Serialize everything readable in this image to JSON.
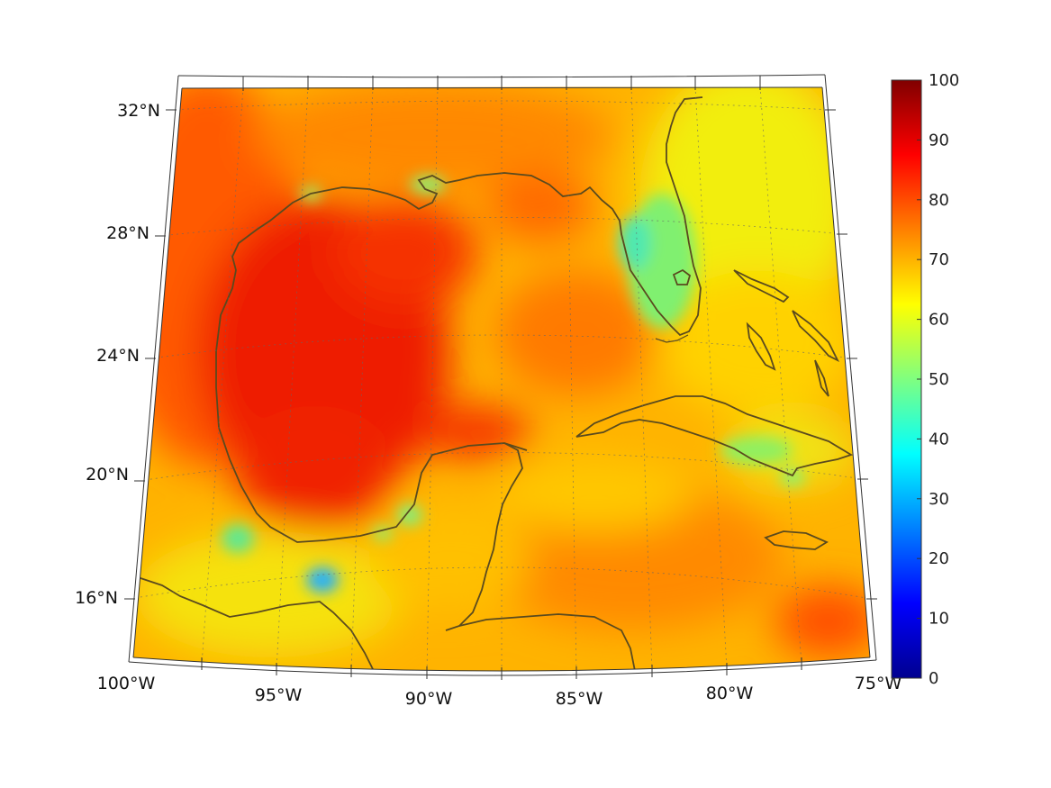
{
  "map": {
    "region": "Gulf of Mexico and Caribbean",
    "projection": "conic",
    "grid": true,
    "coastline_color": "#5a4a1e",
    "lon_ticks": [
      {
        "value": -100,
        "label": "100°W"
      },
      {
        "value": -95,
        "label": "95°W"
      },
      {
        "value": -90,
        "label": "90°W"
      },
      {
        "value": -85,
        "label": "85°W"
      },
      {
        "value": -80,
        "label": "80°W"
      },
      {
        "value": -75,
        "label": "75°W"
      }
    ],
    "lat_ticks": [
      {
        "value": 32,
        "label": "32°N"
      },
      {
        "value": 28,
        "label": "28°N"
      },
      {
        "value": 24,
        "label": "24°N"
      },
      {
        "value": 20,
        "label": "20°N"
      },
      {
        "value": 16,
        "label": "16°N"
      }
    ]
  },
  "colorbar": {
    "colormap": "jet",
    "min": 0,
    "max": 100,
    "placement": "right",
    "ticks": [
      {
        "value": 100,
        "label": "100"
      },
      {
        "value": 90,
        "label": "90"
      },
      {
        "value": 80,
        "label": "80"
      },
      {
        "value": 70,
        "label": "70"
      },
      {
        "value": 60,
        "label": "60"
      },
      {
        "value": 50,
        "label": "50"
      },
      {
        "value": 40,
        "label": "40"
      },
      {
        "value": 30,
        "label": "30"
      },
      {
        "value": 20,
        "label": "20"
      },
      {
        "value": 10,
        "label": "10"
      },
      {
        "value": 0,
        "label": "0"
      }
    ]
  }
}
